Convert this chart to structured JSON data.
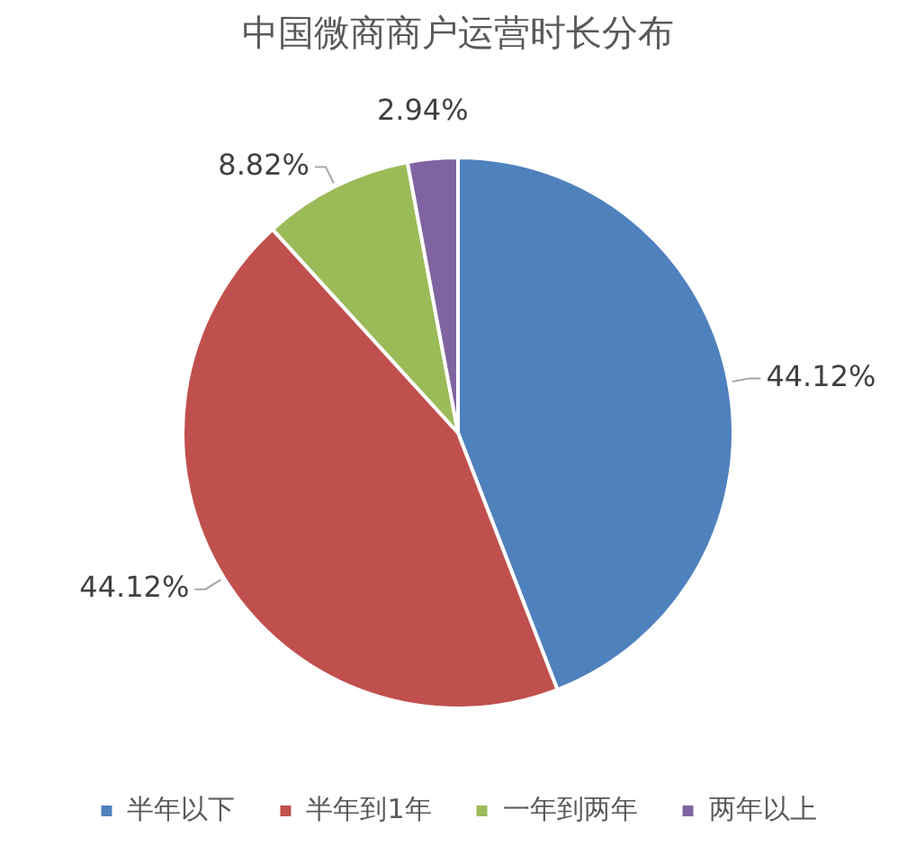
{
  "chart_data": {
    "type": "pie",
    "title": "中国微商商户运营时长分布",
    "categories": [
      "半年以下",
      "半年到1年",
      "一年到两年",
      "两年以上"
    ],
    "values": [
      44.12,
      44.12,
      8.82,
      2.94
    ],
    "colors": [
      "#4f81bd",
      "#c0504d",
      "#9bbb59",
      "#8064a2"
    ],
    "value_labels": [
      "44.12%",
      "44.12%",
      "8.82%",
      "2.94%"
    ],
    "legend": "bottom"
  }
}
